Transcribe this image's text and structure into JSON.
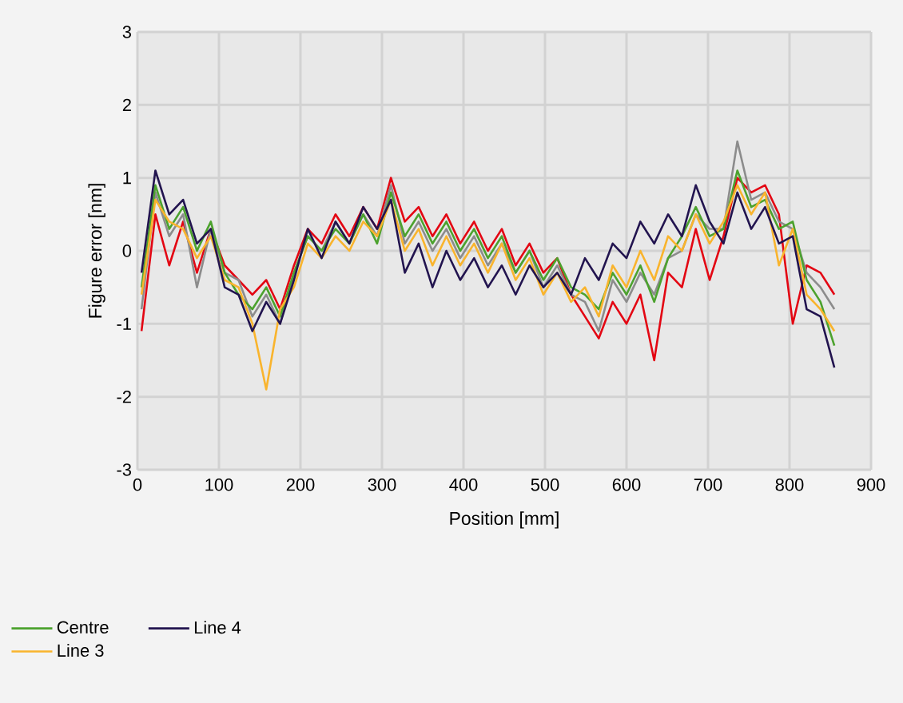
{
  "chart_data": {
    "type": "line",
    "xlabel": "Position [mm]",
    "ylabel": "Figure error [nm]",
    "x": [
      5,
      22,
      39,
      56,
      73,
      90,
      107,
      124,
      141,
      158,
      175,
      192,
      209,
      226,
      243,
      260,
      277,
      294,
      311,
      328,
      345,
      362,
      379,
      396,
      413,
      430,
      447,
      464,
      481,
      498,
      515,
      532,
      549,
      566,
      583,
      600,
      617,
      634,
      651,
      668,
      685,
      702,
      719,
      736,
      753,
      770,
      787,
      804,
      821,
      838,
      855
    ],
    "series": [
      {
        "color": "#e30613",
        "values": [
          -1.1,
          0.5,
          -0.2,
          0.4,
          -0.3,
          0.3,
          -0.2,
          -0.4,
          -0.6,
          -0.4,
          -0.8,
          -0.2,
          0.3,
          0.1,
          0.5,
          0.2,
          0.6,
          0.3,
          1.0,
          0.4,
          0.6,
          0.2,
          0.5,
          0.1,
          0.4,
          0.0,
          0.3,
          -0.2,
          0.1,
          -0.3,
          -0.1,
          -0.6,
          -0.9,
          -1.2,
          -0.7,
          -1.0,
          -0.6,
          -1.5,
          -0.3,
          -0.5,
          0.3,
          -0.4,
          0.2,
          1.0,
          0.8,
          0.9,
          0.5,
          -1.0,
          -0.2,
          -0.3,
          -0.6
        ]
      },
      {
        "color": "#8c8c8c",
        "values": [
          -0.8,
          0.8,
          0.2,
          0.5,
          -0.5,
          0.3,
          -0.3,
          -0.4,
          -0.9,
          -0.6,
          -1.0,
          -0.3,
          0.2,
          0.0,
          0.4,
          0.1,
          0.5,
          0.2,
          0.9,
          0.1,
          0.4,
          0.0,
          0.3,
          -0.1,
          0.2,
          -0.2,
          0.1,
          -0.3,
          0.0,
          -0.5,
          -0.2,
          -0.6,
          -0.7,
          -1.1,
          -0.4,
          -0.7,
          -0.3,
          -0.6,
          -0.1,
          0.0,
          0.5,
          0.3,
          0.3,
          1.5,
          0.7,
          0.8,
          0.4,
          0.3,
          -0.3,
          -0.5,
          -0.8
        ]
      },
      {
        "name": "Centre",
        "color": "#4ca22e",
        "values": [
          -0.5,
          0.9,
          0.3,
          0.6,
          0.0,
          0.4,
          -0.3,
          -0.6,
          -0.8,
          -0.5,
          -0.9,
          -0.3,
          0.2,
          0.0,
          0.3,
          0.1,
          0.5,
          0.1,
          0.8,
          0.2,
          0.5,
          0.1,
          0.4,
          0.0,
          0.3,
          -0.1,
          0.2,
          -0.3,
          0.0,
          -0.4,
          -0.1,
          -0.5,
          -0.6,
          -0.8,
          -0.3,
          -0.6,
          -0.2,
          -0.7,
          -0.1,
          0.2,
          0.6,
          0.2,
          0.3,
          1.1,
          0.6,
          0.7,
          0.3,
          0.4,
          -0.4,
          -0.7,
          -1.3
        ]
      },
      {
        "name": "Line 3",
        "color": "#f9b42d",
        "values": [
          -0.6,
          0.7,
          0.4,
          0.3,
          -0.1,
          0.2,
          -0.4,
          -0.5,
          -1.0,
          -1.9,
          -0.8,
          -0.5,
          0.1,
          -0.1,
          0.2,
          0.0,
          0.4,
          0.2,
          0.7,
          0.0,
          0.3,
          -0.2,
          0.2,
          -0.2,
          0.1,
          -0.3,
          0.1,
          -0.4,
          -0.1,
          -0.6,
          -0.3,
          -0.7,
          -0.5,
          -0.9,
          -0.2,
          -0.5,
          0.0,
          -0.4,
          0.2,
          0.0,
          0.5,
          0.1,
          0.4,
          0.9,
          0.5,
          0.8,
          -0.2,
          0.3,
          -0.6,
          -0.8,
          -1.1
        ]
      },
      {
        "name": "Line 4",
        "color": "#22144f",
        "values": [
          -0.3,
          1.1,
          0.5,
          0.7,
          0.1,
          0.3,
          -0.5,
          -0.6,
          -1.1,
          -0.7,
          -1.0,
          -0.4,
          0.3,
          -0.1,
          0.4,
          0.1,
          0.6,
          0.3,
          0.7,
          -0.3,
          0.1,
          -0.5,
          0.0,
          -0.4,
          -0.1,
          -0.5,
          -0.2,
          -0.6,
          -0.2,
          -0.5,
          -0.3,
          -0.6,
          -0.1,
          -0.4,
          0.1,
          -0.1,
          0.4,
          0.1,
          0.5,
          0.2,
          0.9,
          0.4,
          0.1,
          0.8,
          0.3,
          0.6,
          0.1,
          0.2,
          -0.8,
          -0.9,
          -1.6
        ]
      }
    ],
    "xlim": [
      0,
      900
    ],
    "xticks": [
      0,
      100,
      200,
      300,
      400,
      500,
      600,
      700,
      800,
      900
    ],
    "ylim": [
      -3,
      3
    ],
    "yticks": [
      -3,
      -2,
      -1,
      0,
      1,
      2,
      3
    ],
    "grid": true,
    "legend": "bottom",
    "marker": "none",
    "line_style": "solid"
  }
}
